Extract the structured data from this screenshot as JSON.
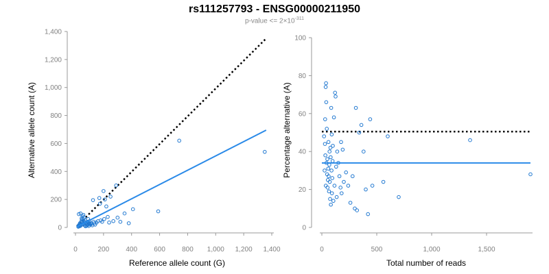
{
  "title": "rs111257793 - ENSG00000211950",
  "subtitle": {
    "prefix": "p-value <= 2",
    "times": "×",
    "base": "10",
    "exponent": "-311"
  },
  "colors": {
    "points": "#1f77d0",
    "fit_line": "#2a8ae8",
    "reference_line": "#000000",
    "axis": "#999999",
    "tick_text": "#808080"
  },
  "chart_data": [
    {
      "type": "scatter",
      "xlabel": "Reference allele count (G)",
      "ylabel": "Alternative allele count (A)",
      "xlim": [
        0,
        1400
      ],
      "ylim": [
        0,
        1400
      ],
      "xticks": [
        0,
        200,
        400,
        600,
        800,
        1000,
        1200,
        1400
      ],
      "xtick_labels": [
        "0",
        "200",
        "400",
        "600",
        "800",
        "1,000",
        "1,200",
        "1,400"
      ],
      "yticks": [
        0,
        200,
        400,
        600,
        800,
        1000,
        1200,
        1400
      ],
      "ytick_labels": [
        "0",
        "200",
        "400",
        "600",
        "800",
        "1,000",
        "1,200",
        "1,400"
      ],
      "grid": false,
      "fit_line": {
        "x": [
          10,
          1360
        ],
        "y": [
          5,
          695
        ],
        "style": "solid"
      },
      "reference_line": {
        "x": [
          10,
          1360
        ],
        "y": [
          10,
          1350
        ],
        "style": "dotted"
      },
      "points": [
        [
          20,
          5
        ],
        [
          22,
          12
        ],
        [
          25,
          8
        ],
        [
          28,
          20
        ],
        [
          30,
          15
        ],
        [
          32,
          30
        ],
        [
          35,
          10
        ],
        [
          38,
          25
        ],
        [
          40,
          40
        ],
        [
          42,
          18
        ],
        [
          45,
          55
        ],
        [
          48,
          35
        ],
        [
          50,
          80
        ],
        [
          52,
          22
        ],
        [
          55,
          60
        ],
        [
          58,
          45
        ],
        [
          60,
          28
        ],
        [
          62,
          70
        ],
        [
          65,
          15
        ],
        [
          68,
          38
        ],
        [
          70,
          50
        ],
        [
          72,
          8
        ],
        [
          75,
          30
        ],
        [
          78,
          20
        ],
        [
          80,
          12
        ],
        [
          82,
          25
        ],
        [
          85,
          40
        ],
        [
          88,
          18
        ],
        [
          90,
          60
        ],
        [
          92,
          35
        ],
        [
          95,
          10
        ],
        [
          98,
          28
        ],
        [
          100,
          45
        ],
        [
          105,
          20
        ],
        [
          110,
          30
        ],
        [
          115,
          25
        ],
        [
          120,
          15
        ],
        [
          125,
          195
        ],
        [
          130,
          40
        ],
        [
          135,
          30
        ],
        [
          140,
          20
        ],
        [
          150,
          35
        ],
        [
          160,
          45
        ],
        [
          170,
          210
        ],
        [
          175,
          170
        ],
        [
          180,
          50
        ],
        [
          190,
          40
        ],
        [
          200,
          260
        ],
        [
          205,
          60
        ],
        [
          210,
          200
        ],
        [
          220,
          150
        ],
        [
          230,
          75
        ],
        [
          240,
          35
        ],
        [
          250,
          220
        ],
        [
          270,
          45
        ],
        [
          290,
          300
        ],
        [
          300,
          70
        ],
        [
          320,
          40
        ],
        [
          350,
          100
        ],
        [
          380,
          30
        ],
        [
          410,
          130
        ],
        [
          590,
          115
        ],
        [
          740,
          620
        ],
        [
          1350,
          540
        ],
        [
          24,
          95
        ],
        [
          36,
          100
        ],
        [
          44,
          65
        ],
        [
          56,
          90
        ]
      ]
    },
    {
      "type": "scatter",
      "xlabel": "Total number of reads",
      "ylabel": "Percentage alternative (A)",
      "xlim": [
        0,
        1900
      ],
      "ylim": [
        0,
        100
      ],
      "xticks": [
        0,
        500,
        1000,
        1500
      ],
      "xtick_labels": [
        "0",
        "500",
        "1,000",
        "1,500"
      ],
      "yticks": [
        0,
        20,
        40,
        60,
        80,
        100
      ],
      "ytick_labels": [
        "0",
        "20",
        "40",
        "60",
        "80",
        "100"
      ],
      "grid": false,
      "fit_line": {
        "x": [
          0,
          1900
        ],
        "y": [
          34,
          34
        ],
        "style": "solid"
      },
      "reference_line": {
        "x": [
          0,
          1900
        ],
        "y": [
          50.5,
          50.5
        ],
        "style": "dotted"
      },
      "points": [
        [
          20,
          48
        ],
        [
          25,
          30
        ],
        [
          28,
          44
        ],
        [
          30,
          57
        ],
        [
          32,
          38
        ],
        [
          35,
          74
        ],
        [
          36,
          22
        ],
        [
          38,
          76
        ],
        [
          40,
          66
        ],
        [
          42,
          34
        ],
        [
          45,
          52
        ],
        [
          48,
          28
        ],
        [
          50,
          36
        ],
        [
          52,
          21
        ],
        [
          55,
          25
        ],
        [
          58,
          31
        ],
        [
          60,
          45
        ],
        [
          62,
          27
        ],
        [
          65,
          19
        ],
        [
          68,
          33
        ],
        [
          70,
          40
        ],
        [
          72,
          24
        ],
        [
          75,
          15
        ],
        [
          78,
          42
        ],
        [
          80,
          37
        ],
        [
          82,
          12
        ],
        [
          85,
          63
        ],
        [
          88,
          30
        ],
        [
          90,
          49
        ],
        [
          92,
          18
        ],
        [
          95,
          26
        ],
        [
          98,
          35
        ],
        [
          100,
          43
        ],
        [
          105,
          14
        ],
        [
          110,
          58
        ],
        [
          115,
          22
        ],
        [
          120,
          71
        ],
        [
          125,
          69
        ],
        [
          130,
          32
        ],
        [
          135,
          16
        ],
        [
          140,
          40
        ],
        [
          150,
          34
        ],
        [
          160,
          27
        ],
        [
          170,
          21
        ],
        [
          175,
          45
        ],
        [
          180,
          18
        ],
        [
          190,
          41
        ],
        [
          200,
          24
        ],
        [
          220,
          29
        ],
        [
          240,
          22
        ],
        [
          260,
          13
        ],
        [
          280,
          27
        ],
        [
          300,
          10
        ],
        [
          310,
          63
        ],
        [
          320,
          9
        ],
        [
          340,
          50
        ],
        [
          360,
          54
        ],
        [
          380,
          40
        ],
        [
          400,
          20
        ],
        [
          420,
          7
        ],
        [
          440,
          57
        ],
        [
          460,
          22
        ],
        [
          560,
          24
        ],
        [
          600,
          48
        ],
        [
          700,
          16
        ],
        [
          1350,
          46
        ],
        [
          1900,
          28
        ]
      ]
    }
  ]
}
